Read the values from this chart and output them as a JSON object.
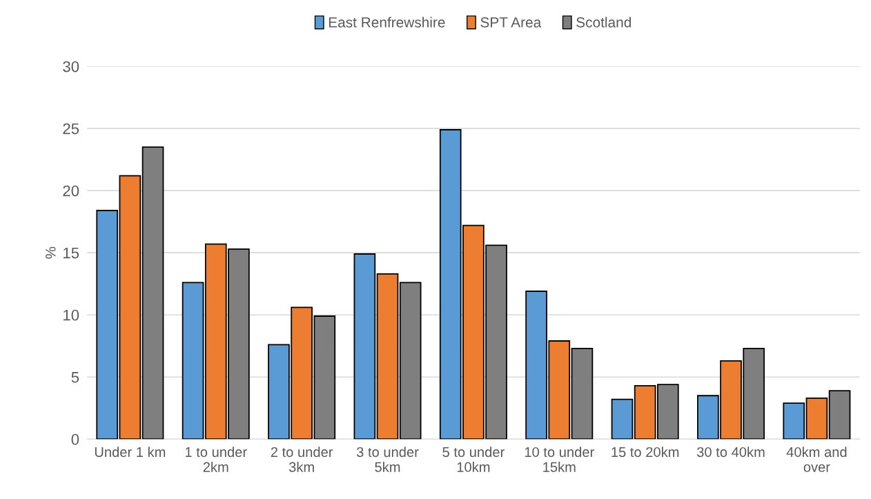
{
  "chart_data": {
    "type": "bar",
    "ylabel": "%",
    "categories": [
      "Under 1 km",
      "1 to under\n2km",
      "2 to under\n3km",
      "3 to under\n5km",
      "5 to under\n10km",
      "10 to under\n15km",
      "15 to 20km",
      "30 to 40km",
      "40km and\nover"
    ],
    "series": [
      {
        "name": "East Renfrewshire",
        "color": "#5b9bd5",
        "values": [
          18.4,
          12.6,
          7.6,
          14.9,
          24.9,
          11.9,
          3.2,
          3.5,
          2.9
        ]
      },
      {
        "name": "SPT Area",
        "color": "#ed7d31",
        "values": [
          21.2,
          15.7,
          10.6,
          13.3,
          17.2,
          7.9,
          4.3,
          6.3,
          3.3
        ]
      },
      {
        "name": "Scotland",
        "color": "#7f7f7f",
        "values": [
          23.5,
          15.3,
          9.9,
          12.6,
          15.6,
          7.3,
          4.4,
          7.3,
          3.9
        ]
      }
    ],
    "ylim": [
      0,
      30
    ],
    "yticks": [
      0,
      5,
      10,
      15,
      20,
      25,
      30
    ],
    "grid": "y",
    "legend": "top"
  }
}
